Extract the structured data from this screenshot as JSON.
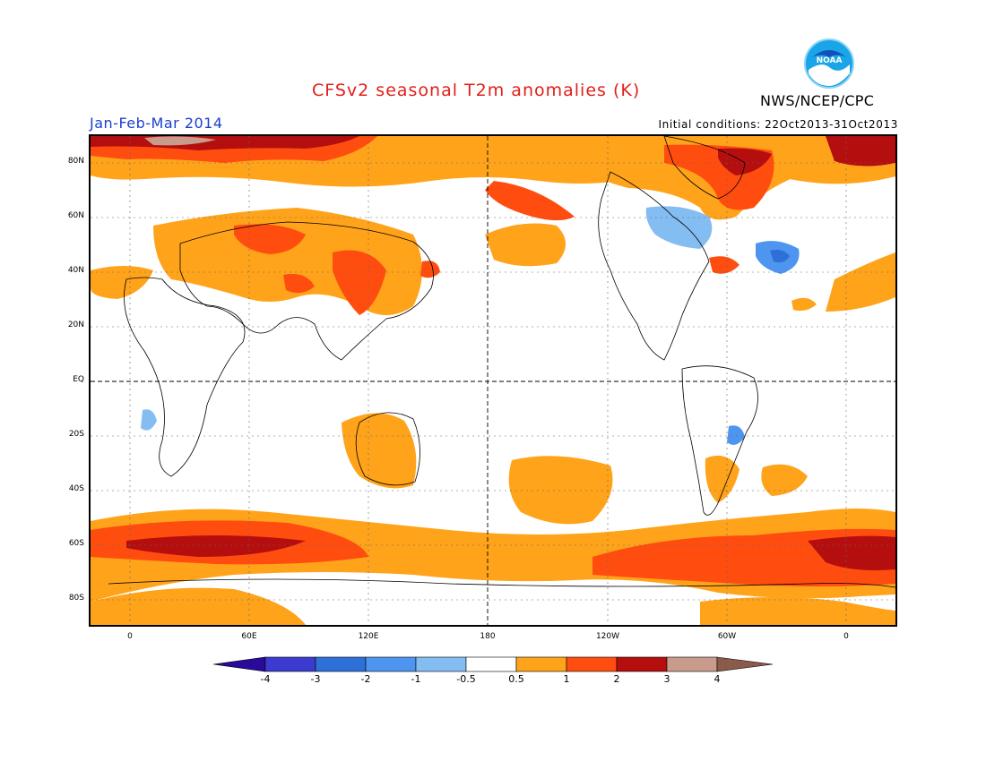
{
  "title": "CFSv2 seasonal T2m anomalies (K)",
  "period": "Jan-Feb-Mar 2014",
  "agency": "NWS/NCEP/CPC",
  "logo_text": "NOAA",
  "initial_conditions": "Initial conditions: 22Oct2013-31Oct2013",
  "lat_labels": [
    "80N",
    "60N",
    "40N",
    "20N",
    "EQ",
    "20S",
    "40S",
    "60S",
    "80S"
  ],
  "lon_labels": [
    "0",
    "60E",
    "120E",
    "180",
    "120W",
    "60W",
    "0"
  ],
  "colorbar": {
    "labels": [
      "-4",
      "-3",
      "-2",
      "-1",
      "-0.5",
      "0.5",
      "1",
      "2",
      "3",
      "4"
    ],
    "colors": [
      "#2a0a9a",
      "#3b3bd0",
      "#2e6fd8",
      "#4d95ee",
      "#84bdf2",
      "#ffffff",
      "#ffa31a",
      "#ff4d10",
      "#b50e0e",
      "#c99b8c",
      "#8a5a4a"
    ]
  },
  "anomaly_colors": {
    "warm_1": "#ffa31a",
    "warm_2": "#ff4d10",
    "warm_3": "#b50e0e",
    "warm_4": "#c99b8c",
    "cold_1": "#84bdf2",
    "cold_2": "#4d95ee",
    "cold_3": "#2e6fd8"
  }
}
